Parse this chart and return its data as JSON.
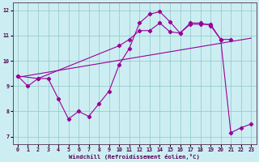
{
  "xlabel": "Windchill (Refroidissement éolien,°C)",
  "bg_color": "#cceef2",
  "line_color": "#990099",
  "grid_color": "#99cccc",
  "ylim": [
    6.7,
    12.3
  ],
  "xlim": [
    -0.5,
    23.5
  ],
  "yticks": [
    7,
    8,
    9,
    10,
    11,
    12
  ],
  "xticks": [
    0,
    1,
    2,
    3,
    4,
    5,
    6,
    7,
    8,
    9,
    10,
    11,
    12,
    13,
    14,
    15,
    16,
    17,
    18,
    19,
    20,
    21,
    22,
    23
  ],
  "line1_x": [
    0,
    1,
    2,
    3,
    4,
    5,
    6,
    7,
    8,
    9,
    10,
    11,
    12,
    13,
    14,
    15,
    16,
    17,
    18,
    19,
    20,
    21,
    22,
    23
  ],
  "line1_y": [
    9.4,
    9.0,
    9.3,
    9.3,
    8.5,
    7.7,
    8.0,
    7.8,
    8.3,
    8.8,
    9.85,
    10.5,
    11.5,
    11.85,
    11.95,
    11.55,
    11.1,
    11.45,
    11.45,
    11.45,
    10.85,
    7.15,
    7.35,
    7.5
  ],
  "line2_x": [
    0,
    2,
    10,
    11,
    12,
    13,
    14,
    15,
    16,
    17,
    18,
    19,
    20,
    21
  ],
  "line2_y": [
    9.4,
    9.3,
    10.6,
    10.85,
    11.2,
    11.2,
    11.5,
    11.15,
    11.1,
    11.5,
    11.5,
    11.4,
    10.85,
    10.85
  ],
  "line3_x": [
    0,
    23
  ],
  "line3_y": [
    9.35,
    10.9
  ]
}
